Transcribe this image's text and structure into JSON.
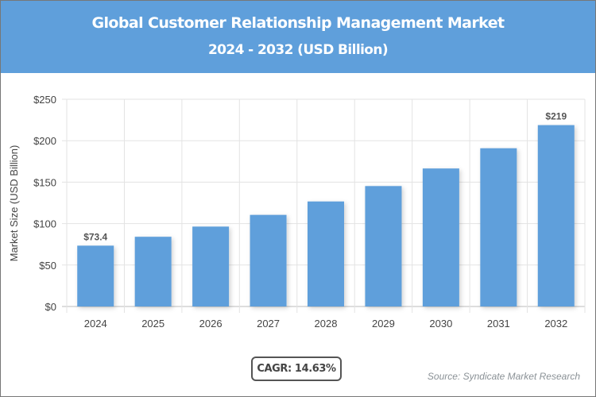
{
  "header": {
    "title": "Global Customer Relationship Management Market",
    "subtitle": "2024 - 2032 (USD Billion)"
  },
  "chart_data": {
    "type": "bar",
    "title": "Global Customer Relationship Management Market",
    "subtitle": "2024 - 2032 (USD Billion)",
    "xlabel": "",
    "ylabel": "Market Size (USD Billion)",
    "categories": [
      "2024",
      "2025",
      "2026",
      "2027",
      "2028",
      "2029",
      "2030",
      "2031",
      "2032"
    ],
    "values": [
      73.4,
      84.1,
      96.4,
      110.5,
      126.7,
      145.3,
      166.5,
      190.9,
      218.8
    ],
    "data_labels": {
      "0": "$73.4",
      "8": "$219"
    },
    "ylim": [
      0,
      250
    ],
    "yticks": [
      0,
      50,
      100,
      150,
      200,
      250
    ],
    "ytick_labels": [
      "$0",
      "$50",
      "$100",
      "$150",
      "$200",
      "$250"
    ],
    "grid": true,
    "bar_color": "#5f9fdb",
    "header_color": "#5f9fdb"
  },
  "footer": {
    "cagr": "CAGR: 14.63%",
    "source": "Source: Syndicate Market Research"
  }
}
